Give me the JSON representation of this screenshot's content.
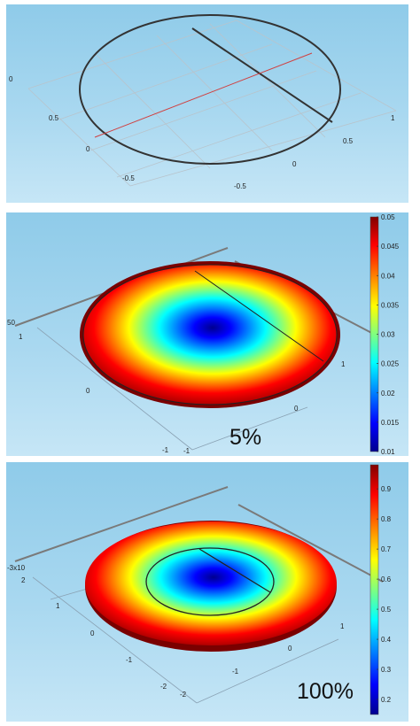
{
  "panels": [
    {
      "ticks": {
        "z": "0",
        "y_pos": "0.5",
        "y_zero": "0",
        "y_neg": "-0.5",
        "x_pos": "0.5",
        "x_zero": "0",
        "x_neg": "-0.5",
        "x_one": "1"
      }
    },
    {
      "ticks": {
        "z": "50",
        "y_pos": "1",
        "y_zero": "0",
        "y_neg": "-1",
        "x_pos": "1",
        "x_zero": "0",
        "x_neg": "-1"
      },
      "colorbar": {
        "min": 0.01,
        "max": 0.05,
        "labels": [
          "0.05",
          "0.045",
          "0.04",
          "0.035",
          "0.03",
          "0.025",
          "0.02",
          "0.015",
          "0.01"
        ]
      },
      "label": "5%"
    },
    {
      "ticks": {
        "z": "x10",
        "z_exp": "-3",
        "y_pos": "2",
        "y_one": "1",
        "y_zero": "0",
        "y_neg": "-1",
        "y_neg2": "-2",
        "x_pos": "1",
        "x_zero": "0",
        "x_neg": "-1",
        "x_neg2": "-2"
      },
      "colorbar": {
        "min": 0.15,
        "max": 0.98,
        "labels": [
          "0.9",
          "0.8",
          "0.7",
          "0.6",
          "0.5",
          "0.4",
          "0.3",
          "0.2"
        ]
      },
      "label": "100%"
    }
  ],
  "colormap": [
    "#00008f",
    "#0000ff",
    "#00ffff",
    "#ffff00",
    "#ff0000",
    "#800000"
  ]
}
